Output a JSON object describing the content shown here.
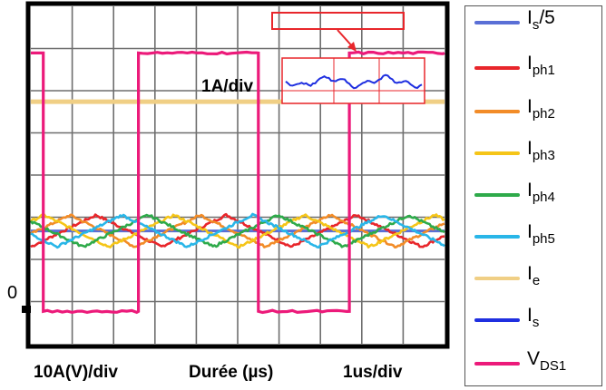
{
  "chart_data": {
    "type": "line",
    "title": "",
    "x_axis": {
      "label": "Durée (µs)",
      "scale_label": "1us/div",
      "divisions": 10
    },
    "y_axis": {
      "scale_label": "10A(V)/div",
      "divisions": 8,
      "zero_label": "0"
    },
    "inset": {
      "label": "1A/div",
      "content": "zoom of Is ripple"
    },
    "grid": true,
    "legend_position": "right",
    "series": [
      {
        "key": "is5",
        "name": "Is/5",
        "main": "I",
        "sub": "s/5",
        "sub_style": "inline",
        "color": "#5a6fd6",
        "level_div": 1.85
      },
      {
        "key": "iph1",
        "name": "Iph1",
        "main": "I",
        "sub": "ph1",
        "color": "#e8262b",
        "phase": 0.0
      },
      {
        "key": "iph2",
        "name": "Iph2",
        "main": "I",
        "sub": "ph2",
        "color": "#f28c28",
        "phase": 0.2
      },
      {
        "key": "iph3",
        "name": "Iph3",
        "main": "I",
        "sub": "ph3",
        "color": "#f5c518",
        "phase": 0.4
      },
      {
        "key": "iph4",
        "name": "Iph4",
        "main": "I",
        "sub": "ph4",
        "color": "#2eaa4a",
        "phase": 0.6
      },
      {
        "key": "iph5",
        "name": "Iph5",
        "main": "I",
        "sub": "ph5",
        "color": "#29b6e8",
        "phase": 0.8
      },
      {
        "key": "ie",
        "name": "Ie",
        "main": "I",
        "sub": "e",
        "color": "#f0cf85",
        "level_div": 4.9
      },
      {
        "key": "is",
        "name": "Is",
        "main": "I",
        "sub": "s",
        "color": "#1f2fe0",
        "level_div": 9.5
      },
      {
        "key": "vds1",
        "name": "VDS1",
        "main": "V",
        "sub": "DS1",
        "color": "#ec1a7a",
        "low_div": -0.05,
        "high_div": 6.05
      }
    ],
    "phase_current": {
      "mean_div": 1.85,
      "ripple_pp_div": 0.75,
      "period_div": 3.15
    },
    "vds1_edges_div": [
      0.3,
      2.6,
      5.5,
      7.7,
      10.2,
      12.3
    ],
    "period_div": 3.15
  }
}
